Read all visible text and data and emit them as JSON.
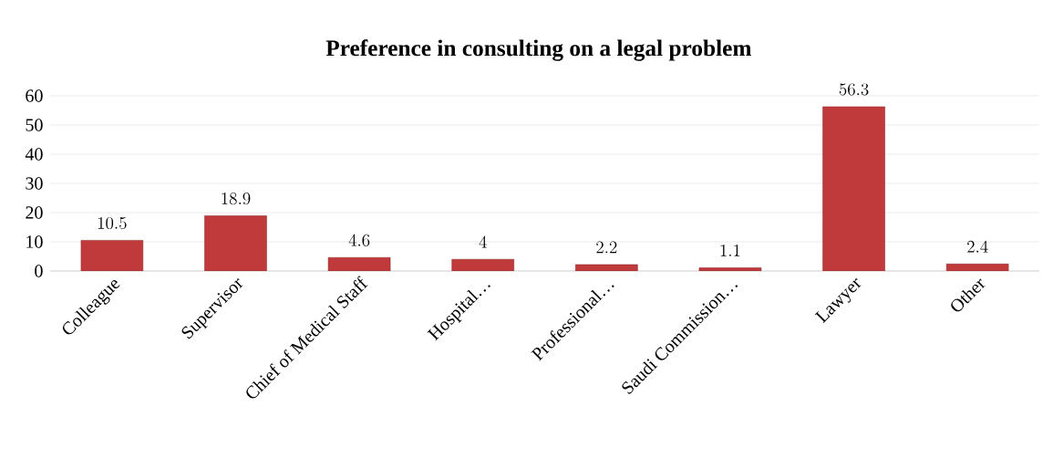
{
  "chart_data": {
    "type": "bar",
    "title": "Preference in consulting on a legal problem",
    "categories": [
      "Colleague",
      "Supervisor",
      "Chief of Medical Staff",
      "Hospital…",
      "Professional…",
      "Saudi Commission…",
      "Lawyer",
      "Other"
    ],
    "values": [
      10.5,
      18.9,
      4.6,
      4,
      2.2,
      1.1,
      56.3,
      2.4
    ],
    "color": "#c0393b",
    "ylim": [
      0,
      60
    ],
    "yticks": [
      0,
      10,
      20,
      30,
      40,
      50,
      60
    ],
    "grid": "y",
    "data_labels": true
  }
}
